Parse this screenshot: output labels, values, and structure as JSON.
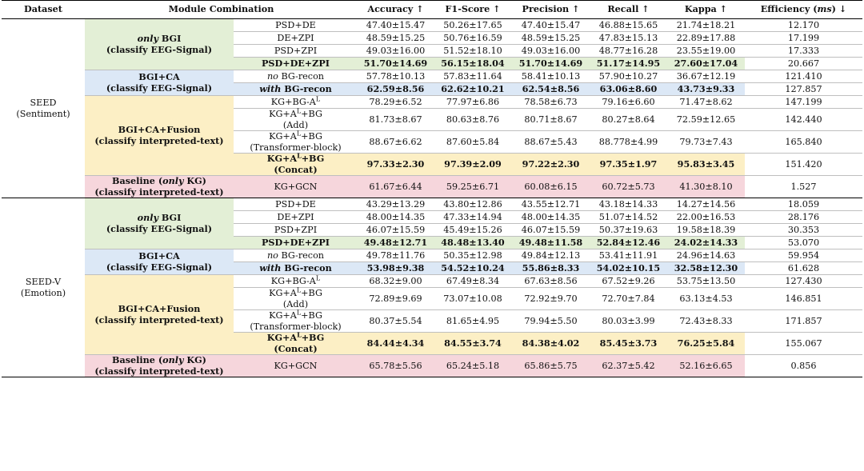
{
  "headers": {
    "dataset": "Dataset",
    "module": "Module Combination",
    "accuracy": "Accuracy ↑",
    "f1": "F1-Score ↑",
    "precision": "Precision ↑",
    "recall": "Recall ↑",
    "kappa": "Kappa ↑",
    "efficiency_pre": "Efficiency (",
    "efficiency_unit": "ms",
    "efficiency_post": ") ↓"
  },
  "blocks": [
    {
      "dataset_line1": "SEED",
      "dataset_line2": "(Sentiment)",
      "groups": [
        {
          "color": "green",
          "label_italic": "only",
          "label_rest": " BGI",
          "label_line2": "(classify EEG-Signal)",
          "rows": [
            {
              "comb": "PSD+DE",
              "acc": "47.40±15.47",
              "f1": "50.26±17.65",
              "prec": "47.40±15.47",
              "rec": "46.88±15.65",
              "kappa": "21.74±18.21",
              "eff": "12.170"
            },
            {
              "comb": "DE+ZPI",
              "acc": "48.59±15.25",
              "f1": "50.76±16.59",
              "prec": "48.59±15.25",
              "rec": "47.83±15.13",
              "kappa": "22.89±17.88",
              "eff": "17.199"
            },
            {
              "comb": "PSD+ZPI",
              "acc": "49.03±16.00",
              "f1": "51.52±18.10",
              "prec": "49.03±16.00",
              "rec": "48.77±16.28",
              "kappa": "23.55±19.00",
              "eff": "17.333"
            },
            {
              "comb": "PSD+DE+ZPI",
              "best": true,
              "acc": "51.70±14.69",
              "f1": "56.15±18.04",
              "prec": "51.70±14.69",
              "rec": "51.17±14.95",
              "kappa": "27.60±17.04",
              "eff": "20.667"
            }
          ]
        },
        {
          "color": "blue",
          "label_plain": "BGI+CA",
          "label_line2": "(classify EEG-Signal)",
          "rows": [
            {
              "comb_italic": "no",
              "comb_rest": " BG-recon",
              "acc": "57.78±10.13",
              "f1": "57.83±11.64",
              "prec": "58.41±10.13",
              "rec": "57.90±10.27",
              "kappa": "36.67±12.19",
              "eff": "121.410"
            },
            {
              "comb_italic": "with",
              "comb_rest": " BG-recon",
              "best": true,
              "acc": "62.59±8.56",
              "f1": "62.62±10.21",
              "prec": "62.54±8.56",
              "rec": "63.06±8.60",
              "kappa": "43.73±9.33",
              "eff": "127.857"
            }
          ]
        },
        {
          "color": "yellow",
          "label_plain": "BGI+CA+Fusion",
          "label_line2": "(classify interpreted-text)",
          "rows": [
            {
              "comb_a": "KG+BG-A",
              "comb_sup": "L",
              "acc": "78.29±6.52",
              "f1": "77.97±6.86",
              "prec": "78.58±6.73",
              "rec": "79.16±6.60",
              "kappa": "71.47±8.62",
              "eff": "147.199"
            },
            {
              "comb_a": "KG+A",
              "comb_sup": "L",
              "comb_b": "+BG",
              "comb_line2": "(Add)",
              "acc": "81.73±8.67",
              "f1": "80.63±8.76",
              "prec": "80.71±8.67",
              "rec": "80.27±8.64",
              "kappa": "72.59±12.65",
              "eff": "142.440"
            },
            {
              "comb_a": "KG+A",
              "comb_sup": "L",
              "comb_b": "+BG",
              "comb_line2": "(Transformer-block)",
              "acc": "88.67±6.62",
              "f1": "87.60±5.84",
              "prec": "88.67±5.43",
              "rec": "88.778±4.99",
              "kappa": "79.73±7.43",
              "eff": "165.840"
            },
            {
              "comb_a": "KG+A",
              "comb_sup": "L",
              "comb_b": "+BG",
              "comb_line2": "(Concat)",
              "best": true,
              "acc": "97.33±2.30",
              "f1": "97.39±2.09",
              "prec": "97.22±2.30",
              "rec": "97.35±1.97",
              "kappa": "95.83±3.45",
              "eff": "151.420"
            }
          ]
        },
        {
          "color": "pink",
          "label_plain": "Baseline (",
          "label_italic_mid": "only",
          "label_after": " KG)",
          "label_line2": "(classify interpreted-text)",
          "rows": [
            {
              "comb": "KG+GCN",
              "acc": "61.67±6.44",
              "f1": "59.25±6.71",
              "prec": "60.08±6.15",
              "rec": "60.72±5.73",
              "kappa": "41.30±8.10",
              "eff": "1.527"
            }
          ]
        }
      ]
    },
    {
      "dataset_line1": "SEED-V",
      "dataset_line2": "(Emotion)",
      "groups": [
        {
          "color": "green",
          "label_italic": "only",
          "label_rest": " BGI",
          "label_line2": "(classify EEG-Signal)",
          "rows": [
            {
              "comb": "PSD+DE",
              "acc": "43.29±13.29",
              "f1": "43.80±12.86",
              "prec": "43.55±12.71",
              "rec": "43.18±14.33",
              "kappa": "14.27±14.56",
              "eff": "18.059"
            },
            {
              "comb": "DE+ZPI",
              "acc": "48.00±14.35",
              "f1": "47.33±14.94",
              "prec": "48.00±14.35",
              "rec": "51.07±14.52",
              "kappa": "22.00±16.53",
              "eff": "28.176"
            },
            {
              "comb": "PSD+ZPI",
              "acc": "46.07±15.59",
              "f1": "45.49±15.26",
              "prec": "46.07±15.59",
              "rec": "50.37±19.63",
              "kappa": "19.58±18.39",
              "eff": "30.353"
            },
            {
              "comb": "PSD+DE+ZPI",
              "best": true,
              "acc": "49.48±12.71",
              "f1": "48.48±13.40",
              "prec": "49.48±11.58",
              "rec": "52.84±12.46",
              "kappa": "24.02±14.33",
              "eff": "53.070"
            }
          ]
        },
        {
          "color": "blue",
          "label_plain": "BGI+CA",
          "label_line2": "(classify EEG-Signal)",
          "rows": [
            {
              "comb_italic": "no",
              "comb_rest": " BG-recon",
              "acc": "49.78±11.76",
              "f1": "50.35±12.98",
              "prec": "49.84±12.13",
              "rec": "53.41±11.91",
              "kappa": "24.96±14.63",
              "eff": "59.954"
            },
            {
              "comb_italic": "with",
              "comb_rest": " BG-recon",
              "best": true,
              "acc": "53.98±9.38",
              "f1": "54.52±10.24",
              "prec": "55.86±8.33",
              "rec": "54.02±10.15",
              "kappa": "32.58±12.30",
              "eff": "61.628"
            }
          ]
        },
        {
          "color": "yellow",
          "label_plain": "BGI+CA+Fusion",
          "label_line2": "(classify interpreted-text)",
          "rows": [
            {
              "comb_a": "KG+BG-A",
              "comb_sup": "L",
              "acc": "68.32±9.00",
              "f1": "67.49±8.34",
              "prec": "67.63±8.56",
              "rec": "67.52±9.26",
              "kappa": "53.75±13.50",
              "eff": "127.430"
            },
            {
              "comb_a": "KG+A",
              "comb_sup": "L",
              "comb_b": "+BG",
              "comb_line2": "(Add)",
              "acc": "72.89±9.69",
              "f1": "73.07±10.08",
              "prec": "72.92±9.70",
              "rec": "72.70±7.84",
              "kappa": "63.13±4.53",
              "eff": "146.851"
            },
            {
              "comb_a": "KG+A",
              "comb_sup": "L",
              "comb_b": "+BG",
              "comb_line2": "(Transformer-block)",
              "acc": "80.37±5.54",
              "f1": "81.65±4.95",
              "prec": "79.94±5.50",
              "rec": "80.03±3.99",
              "kappa": "72.43±8.33",
              "eff": "171.857"
            },
            {
              "comb_a": "KG+A",
              "comb_sup": "L",
              "comb_b": "+BG",
              "comb_line2": "(Concat)",
              "best": true,
              "acc": "84.44±4.34",
              "f1": "84.55±3.74",
              "prec": "84.38±4.02",
              "rec": "85.45±3.73",
              "kappa": "76.25±5.84",
              "eff": "155.067"
            }
          ]
        },
        {
          "color": "pink",
          "label_plain": "Baseline (",
          "label_italic_mid": "only",
          "label_after": " KG)",
          "label_line2": "(classify interpreted-text)",
          "rows": [
            {
              "comb": "KG+GCN",
              "acc": "65.78±5.56",
              "f1": "65.24±5.18",
              "prec": "65.86±5.75",
              "rec": "62.37±5.42",
              "kappa": "52.16±6.65",
              "eff": "0.856"
            }
          ]
        }
      ]
    }
  ]
}
